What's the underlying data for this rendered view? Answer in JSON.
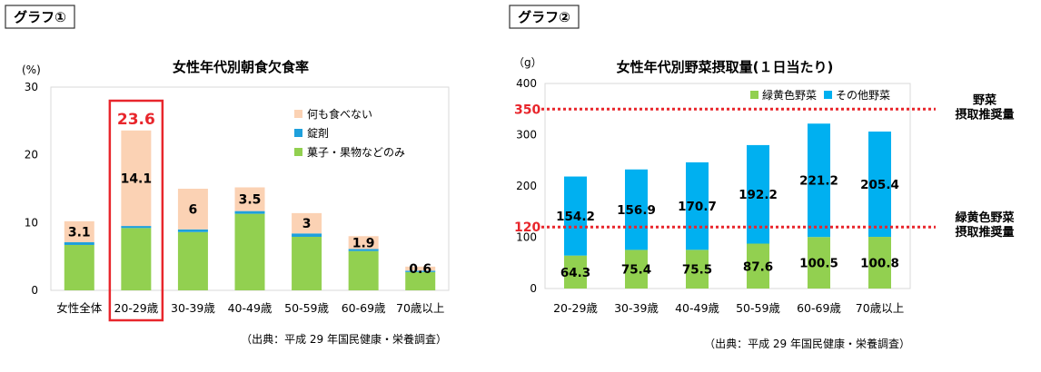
{
  "chart_data": [
    {
      "type": "bar",
      "stacked": true,
      "label": "グラフ①",
      "title": "女性年代別朝食欠食率",
      "unit": "(%)",
      "ylim": [
        0,
        30
      ],
      "yticks": [
        0,
        10,
        20,
        30
      ],
      "grid": false,
      "legend_position": "top-right",
      "categories": [
        "女性全体",
        "20-29歳",
        "30-39歳",
        "40-49歳",
        "50-59歳",
        "60-69歳",
        "70歳以上"
      ],
      "series": [
        {
          "name": "菓子・果物などのみ",
          "color": "#92d050",
          "values": [
            6.7,
            9.2,
            8.6,
            11.3,
            7.9,
            5.8,
            2.7
          ]
        },
        {
          "name": "錠剤",
          "color": "#1ea0dc",
          "values": [
            0.4,
            0.3,
            0.4,
            0.4,
            0.5,
            0.3,
            0.2
          ]
        },
        {
          "name": "何も食べない",
          "color": "#fbd2b4",
          "values": [
            3.1,
            14.1,
            6,
            3.5,
            3,
            1.9,
            0.6
          ]
        }
      ],
      "value_labels": [
        "3.1",
        "14.1",
        "6",
        "3.5",
        "3",
        "1.9",
        "0.6"
      ],
      "highlight": {
        "category_index": 1,
        "total_label": "23.6",
        "color": "#e8262c"
      },
      "source": "（出典：平成 29 年国民健康・栄養調査）"
    },
    {
      "type": "bar",
      "stacked": true,
      "label": "グラフ②",
      "title": "女性年代別野菜摂取量(１日当たり)",
      "unit": "（g）",
      "ylim": [
        0,
        400
      ],
      "yticks": [
        0,
        100,
        200,
        300,
        400
      ],
      "grid": false,
      "legend_position": "top-right",
      "categories": [
        "20-29歳",
        "30-39歳",
        "40-49歳",
        "50-59歳",
        "60-69歳",
        "70歳以上"
      ],
      "series": [
        {
          "name": "緑黄色野菜",
          "color": "#92d050",
          "values": [
            64.3,
            75.4,
            75.5,
            87.6,
            100.5,
            100.8
          ],
          "labels": [
            "64.3",
            "75.4",
            "75.5",
            "87.6",
            "100.5",
            "100.8"
          ]
        },
        {
          "name": "その他野菜",
          "color": "#00b0f0",
          "values": [
            154.2,
            156.9,
            170.7,
            192.2,
            221.2,
            205.4
          ],
          "labels": [
            "154.2",
            "156.9",
            "170.7",
            "192.2",
            "221.2",
            "205.4"
          ]
        }
      ],
      "reference_lines": [
        {
          "value": 350,
          "label": "350",
          "note": [
            "野菜",
            "摂取推奨量"
          ],
          "color": "#e8262c"
        },
        {
          "value": 120,
          "label": "120",
          "note": [
            "緑黄色野菜",
            "摂取推奨量"
          ],
          "color": "#e8262c"
        }
      ],
      "source": "（出典：平成 29 年国民健康・栄養調査）"
    }
  ]
}
